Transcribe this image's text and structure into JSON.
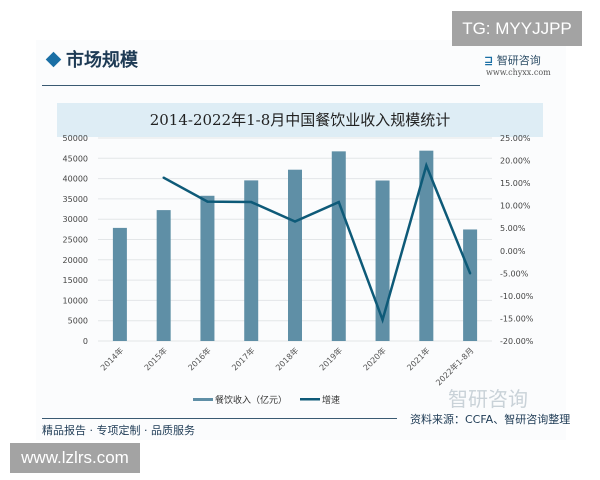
{
  "overlay_top": "TG: MYYJJPP",
  "overlay_bottom": "www.lzlrs.com",
  "header": {
    "section": "市场规模",
    "logo": "智研咨询",
    "url": "www.chyxx.com"
  },
  "footer": {
    "slogan": "精品报告 · 专项定制 · 品质服务",
    "source": "资料来源：CCFA、智研咨询整理",
    "watermark": "智研咨询"
  },
  "colors": {
    "bar": "#5f8fa6",
    "line": "#0e5a78"
  },
  "chart_data": {
    "type": "bar+line",
    "title": "2014-2022年1-8月中国餐饮业收入规模统计",
    "categories": [
      "2014年",
      "2015年",
      "2016年",
      "2017年",
      "2018年",
      "2019年",
      "2020年",
      "2021年",
      "2022年1-8月"
    ],
    "series": [
      {
        "name": "餐饮收入（亿元）",
        "type": "bar",
        "axis": "left",
        "values": [
          27860,
          32240,
          35770,
          39560,
          42190,
          46710,
          39530,
          46880,
          27470
        ]
      },
      {
        "name": "增速",
        "type": "line",
        "axis": "right",
        "values": [
          null,
          16.2,
          10.9,
          10.8,
          6.5,
          10.8,
          -15.3,
          18.9,
          -5.0
        ]
      }
    ],
    "left_axis": {
      "ylim": [
        0,
        50000
      ],
      "ticks": [
        "0",
        "5000",
        "10000",
        "15000",
        "20000",
        "25000",
        "30000",
        "35000",
        "40000",
        "45000",
        "50000"
      ]
    },
    "right_axis": {
      "ylim": [
        -20,
        25
      ],
      "ticks": [
        "-20.00%",
        "-15.00%",
        "-10.00%",
        "-5.00%",
        "0.00%",
        "5.00%",
        "10.00%",
        "15.00%",
        "20.00%",
        "25.00%"
      ]
    },
    "grid": true,
    "legend": "bottom"
  }
}
